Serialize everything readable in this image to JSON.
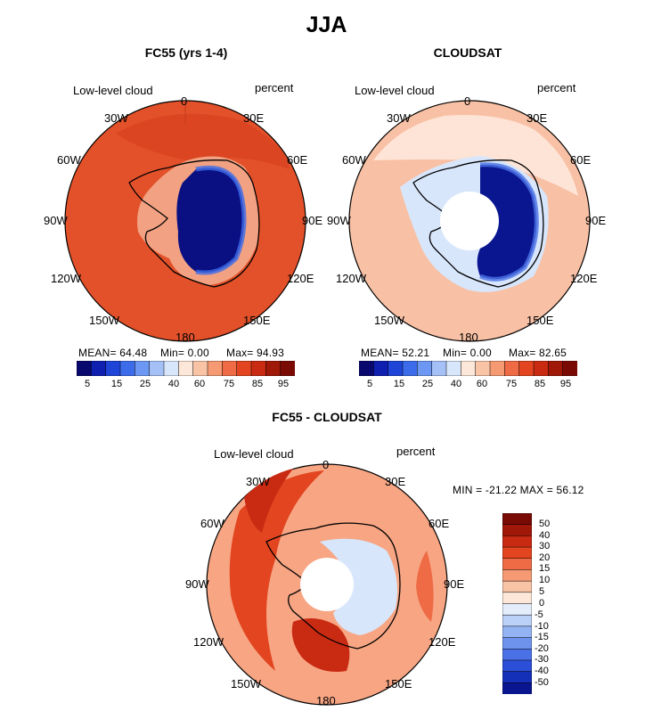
{
  "main_title": "JJA",
  "panels": [
    {
      "title": "FC55 (yrs 1-4)",
      "variable_label": "Low-level cloud",
      "units_label": "percent",
      "stats": {
        "mean": "MEAN=  64.48",
        "min": "Min=    0.00",
        "max": "Max=  94.93"
      },
      "colorbar_labels": [
        "5",
        "15",
        "25",
        "40",
        "60",
        "75",
        "85",
        "95"
      ],
      "fill": "#e2512a",
      "polar_gap": false
    },
    {
      "title": "CLOUDSAT",
      "variable_label": "Low-level cloud",
      "units_label": "percent",
      "stats": {
        "mean": "MEAN=  52.21",
        "min": "Min=    0.00",
        "max": "Max=  82.65"
      },
      "colorbar_labels": [
        "5",
        "15",
        "25",
        "40",
        "60",
        "75",
        "85",
        "95"
      ],
      "fill": "#f8c0a4",
      "polar_gap": true
    }
  ],
  "diff_panel": {
    "title": "FC55 - CLOUDSAT",
    "variable_label": "Low-level cloud",
    "units_label": "percent",
    "minmax": "MIN = -21.22  MAX =  56.12",
    "colorbar_labels": [
      "50",
      "40",
      "30",
      "20",
      "15",
      "10",
      "5",
      "0",
      "-5",
      "-10",
      "-15",
      "-20",
      "-30",
      "-40",
      "-50"
    ],
    "fill": "#f7a583"
  },
  "longitude_labels": {
    "top": "0",
    "l30": "30W",
    "r30": "30E",
    "l60": "60W",
    "r60": "60E",
    "l90": "90W",
    "r90": "90E",
    "l120": "120W",
    "r120": "120E",
    "l150": "150W",
    "r150": "150E",
    "bottom": "180"
  },
  "colors": {
    "horizontal_colorbar": [
      "#08086e",
      "#0f1fb0",
      "#1f45d8",
      "#3c6cea",
      "#6c97f2",
      "#a4c0f6",
      "#d8e6fb",
      "#fde7d8",
      "#f9c3a5",
      "#f59a73",
      "#ee6b45",
      "#e2451f",
      "#c92a12",
      "#a01808",
      "#7a0a04"
    ],
    "vertical_colorbar": [
      "#7a0a04",
      "#a01808",
      "#c92a12",
      "#e2451f",
      "#ee6b45",
      "#f59a73",
      "#f9c3a5",
      "#fde7d8",
      "#e4edfb",
      "#bcd1f7",
      "#94b3f2",
      "#6d93ed",
      "#4a72e6",
      "#2c4fd8",
      "#1530b8",
      "#0a1590"
    ]
  }
}
